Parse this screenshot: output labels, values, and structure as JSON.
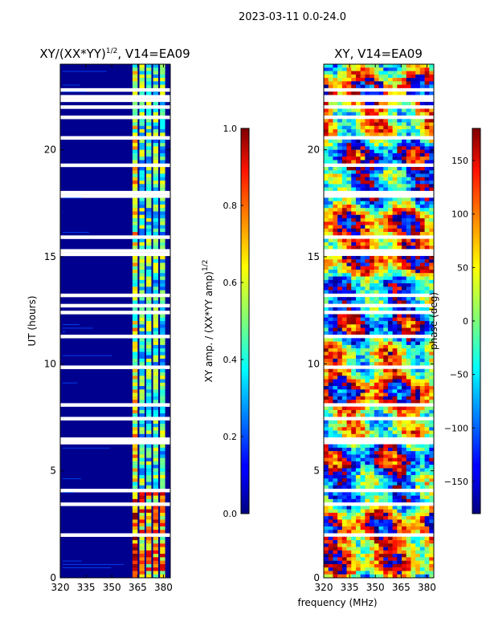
{
  "suptitle": "2023-03-11 0.0-24.0",
  "xlabel": "frequency (MHz)",
  "colors": {
    "frame": "#000000",
    "dark_blue": "#00008f"
  },
  "chart_data": [
    {
      "type": "heatmap",
      "title_main": "XY/(XX*YY)",
      "title_sup": "1/2",
      "title_rest": ", V14=EA09",
      "xlim": [
        320,
        384
      ],
      "x_ticks": [
        320,
        335,
        350,
        365,
        380
      ],
      "ylim": [
        0,
        24
      ],
      "y_ticks": [
        0,
        5,
        10,
        15,
        20
      ],
      "ylabel": "UT (hours)",
      "colorbar": {
        "vmin": 0.0,
        "vmax": 1.0,
        "ticks": [
          "0.0",
          "0.2",
          "0.4",
          "0.6",
          "0.8",
          "1.0"
        ],
        "label_main": "XY amp. / (XX*YY amp)",
        "label_sup": "1/2"
      }
    },
    {
      "type": "heatmap",
      "title": "XY, V14=EA09",
      "xlim": [
        320,
        384
      ],
      "x_ticks": [
        320,
        335,
        350,
        365,
        380
      ],
      "ylim": [
        0,
        24
      ],
      "y_ticks": [
        0,
        5,
        10,
        15,
        20
      ],
      "colorbar": {
        "vmin": -180,
        "vmax": 180,
        "ticks": [
          "150",
          "100",
          "50",
          "0",
          "−50",
          "−100",
          "−150"
        ],
        "tick_values": [
          150,
          100,
          50,
          0,
          -50,
          -100,
          -150
        ],
        "label": "phase (deg)"
      }
    }
  ]
}
